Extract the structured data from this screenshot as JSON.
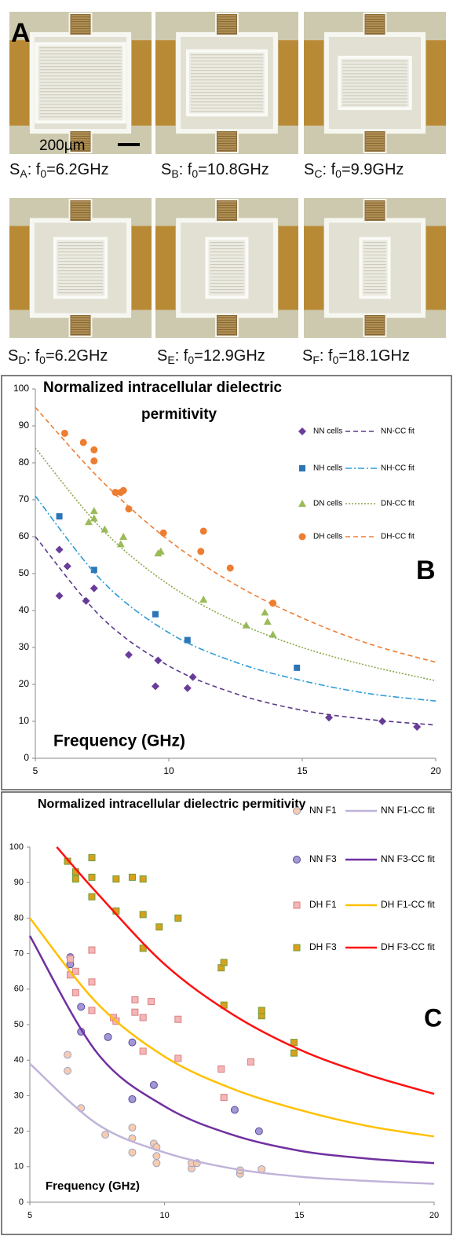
{
  "panel_a": {
    "label": "A",
    "scale_bar": "200µm",
    "captions": [
      {
        "name": "S",
        "name_sub": "A",
        "sep": ": f",
        "sep_sub": "0",
        "rest": "=6.2GHz"
      },
      {
        "name": "S",
        "name_sub": "B",
        "sep": ": f",
        "sep_sub": "0",
        "rest": "=10.8GHz"
      },
      {
        "name": "S",
        "name_sub": "C",
        "sep": ": f",
        "sep_sub": "0",
        "rest": "=9.9GHz"
      },
      {
        "name": "S",
        "name_sub": "D",
        "sep": ": f",
        "sep_sub": "0",
        "rest": "=6.2GHz"
      },
      {
        "name": "S",
        "name_sub": "E",
        "sep": ": f",
        "sep_sub": "0",
        "rest": "=12.9GHz"
      },
      {
        "name": "S",
        "name_sub": "F",
        "sep": ": f",
        "sep_sub": "0",
        "rest": "=18.1GHz"
      }
    ]
  },
  "chart_data": [
    {
      "type": "scatter",
      "panel_label": "B",
      "title": [
        "Normalized intracellular dielectric",
        "permitivity"
      ],
      "x_label": "Frequency (GHz)",
      "xlim": [
        5,
        20
      ],
      "xticks": [
        5,
        10,
        15,
        20
      ],
      "ylim": [
        0,
        100
      ],
      "yticks": [
        0,
        10,
        20,
        30,
        40,
        50,
        60,
        70,
        80,
        90,
        100
      ],
      "series": [
        {
          "name": "NN cells",
          "kind": "scatter",
          "marker": "diamond",
          "color": "#6a3d9a",
          "x": [
            5.9,
            5.9,
            6.2,
            6.9,
            7.2,
            8.5,
            9.5,
            9.6,
            10.7,
            10.9,
            16,
            18,
            19.3
          ],
          "values": [
            56.5,
            44,
            52,
            42.6,
            46,
            28,
            19.5,
            26.5,
            19,
            22,
            11,
            10,
            8.5
          ]
        },
        {
          "name": "NN-CC fit",
          "kind": "line",
          "dash": "dashed",
          "color": "#5b3a8a",
          "x": [
            5,
            7.5,
            10,
            12.5,
            15,
            17.5,
            20
          ],
          "values": [
            60,
            38,
            25,
            17.5,
            13,
            10.5,
            9
          ]
        },
        {
          "name": "NH cells",
          "kind": "scatter",
          "marker": "square",
          "color": "#2e75b6",
          "x": [
            5.9,
            7.2,
            9.5,
            10.7,
            14.8
          ],
          "values": [
            65.5,
            51,
            39,
            32,
            24.5
          ]
        },
        {
          "name": "NH-CC fit",
          "kind": "line",
          "dash": "dashdot",
          "color": "#2e9bd6",
          "x": [
            5,
            7.5,
            10,
            12.5,
            15,
            17.5,
            20
          ],
          "values": [
            71,
            48,
            34,
            26,
            21,
            17.5,
            15.5
          ]
        },
        {
          "name": "DN cells",
          "kind": "scatter",
          "marker": "triangle",
          "color": "#9bbb59",
          "x": [
            7.0,
            7.2,
            7.2,
            7.6,
            8.2,
            8.3,
            9.6,
            9.7,
            11.3,
            12.9,
            13.6,
            13.7,
            13.9
          ],
          "values": [
            64,
            67,
            65,
            62,
            58,
            60,
            55.5,
            56,
            43,
            36,
            39.5,
            37,
            33.5
          ]
        },
        {
          "name": "DN-CC fit",
          "kind": "line",
          "dash": "dotted",
          "color": "#8aa84a",
          "x": [
            5,
            7.5,
            10,
            12.5,
            15,
            17.5,
            20
          ],
          "values": [
            84,
            62,
            47,
            37,
            30,
            25,
            21
          ]
        },
        {
          "name": "DH cells",
          "kind": "scatter",
          "marker": "circle",
          "color": "#ed7d31",
          "x": [
            6.1,
            6.8,
            7.2,
            7.2,
            8.0,
            8.2,
            8.3,
            8.5,
            9.8,
            11.2,
            11.3,
            12.3,
            13.9
          ],
          "values": [
            88,
            85.5,
            83.5,
            80.5,
            72,
            72,
            72.5,
            67.5,
            61,
            56,
            61.5,
            51.5,
            42
          ]
        },
        {
          "name": "DH-CC fit",
          "kind": "line",
          "dash": "dashed",
          "color": "#ed7d31",
          "x": [
            5,
            7.5,
            10,
            12.5,
            15,
            17.5,
            20
          ],
          "values": [
            95,
            75,
            59,
            47,
            38,
            31,
            26
          ]
        }
      ]
    },
    {
      "type": "scatter",
      "panel_label": "C",
      "title": [
        "Normalized intracellular dielectric permitivity"
      ],
      "x_label": "Frequency (GHz)",
      "xlim": [
        5,
        20
      ],
      "xticks": [
        5,
        10,
        15,
        20
      ],
      "ylim": [
        0,
        100
      ],
      "yticks": [
        0,
        10,
        20,
        30,
        40,
        50,
        60,
        70,
        80,
        90,
        100
      ],
      "series": [
        {
          "name": "NN F1",
          "kind": "scatter",
          "marker": "circle",
          "color": "#f8cbad",
          "edge_color": "#9aa3c7",
          "x": [
            6.4,
            6.4,
            6.9,
            7.8,
            8.8,
            8.8,
            8.8,
            9.6,
            9.7,
            9.7,
            9.7,
            11.0,
            11.0,
            11.2,
            12.8,
            12.8,
            13.6
          ],
          "values": [
            41.5,
            37,
            26.5,
            19,
            21,
            14,
            18,
            16.5,
            15.5,
            13,
            11,
            9.5,
            11,
            11,
            8,
            9,
            9.3
          ]
        },
        {
          "name": "NN F1-CC fit",
          "kind": "line",
          "dash": "solid",
          "color": "#c0b3d9",
          "x": [
            5,
            7.5,
            10,
            12.5,
            15,
            17.5,
            20
          ],
          "values": [
            39,
            22,
            14,
            9.5,
            7.2,
            6,
            5.2
          ]
        },
        {
          "name": "NN F3",
          "kind": "scatter",
          "marker": "circle",
          "color": "#a397d6",
          "edge_color": "#5b4a9a",
          "x": [
            6.5,
            6.5,
            6.9,
            6.9,
            7.9,
            8.8,
            8.8,
            9.6,
            12.6,
            13.5
          ],
          "values": [
            69,
            67,
            55,
            48,
            46.5,
            45,
            29,
            33,
            26,
            20
          ]
        },
        {
          "name": "NN F3-CC fit",
          "kind": "line",
          "dash": "solid",
          "color": "#7030a0",
          "x": [
            5,
            7.5,
            10,
            12.5,
            15,
            17.5,
            20
          ],
          "values": [
            75,
            42,
            27,
            19,
            14.5,
            12.3,
            11
          ]
        },
        {
          "name": "DH F1",
          "kind": "scatter",
          "marker": "square",
          "color": "#f4b6b6",
          "edge_color": "#d98080",
          "x": [
            6.5,
            6.5,
            6.7,
            6.7,
            7.3,
            7.3,
            7.3,
            8.1,
            8.2,
            8.2,
            8.9,
            8.9,
            9.2,
            9.2,
            9.5,
            10.5,
            10.5,
            12.1,
            12.2,
            13.2
          ],
          "values": [
            68.5,
            64,
            65,
            59,
            71,
            62,
            54,
            52,
            51,
            51,
            57,
            53.5,
            52,
            42.5,
            56.5,
            51.5,
            40.5,
            37.5,
            29.5,
            39.5
          ]
        },
        {
          "name": "DH F1-CC fit",
          "kind": "line",
          "dash": "solid",
          "color": "#ffc000",
          "x": [
            5,
            7.5,
            10,
            12.5,
            15,
            17.5,
            20
          ],
          "values": [
            80,
            56,
            41,
            32,
            26,
            21.5,
            18.5
          ]
        },
        {
          "name": "DH F3",
          "kind": "scatter",
          "marker": "square",
          "color": "#d8a01e",
          "edge_color": "#6f9e3a",
          "x": [
            6.4,
            6.7,
            6.7,
            7.3,
            7.3,
            7.3,
            8.2,
            8.2,
            8.8,
            9.2,
            9.2,
            9.2,
            9.8,
            10.5,
            12.1,
            12.2,
            12.2,
            13.6,
            13.6,
            14.8,
            14.8
          ],
          "values": [
            96,
            93,
            91,
            91.5,
            86,
            97,
            91,
            82,
            91.5,
            91,
            81,
            71.5,
            77.5,
            80,
            66,
            67.5,
            55.5,
            52.5,
            54,
            45,
            42
          ]
        },
        {
          "name": "DH F3-CC fit",
          "kind": "line",
          "dash": "solid",
          "color": "#ff1010",
          "x": [
            6,
            7.5,
            10,
            12.5,
            15,
            17.5,
            20
          ],
          "values": [
            100,
            87,
            67,
            53,
            43,
            36,
            30.5
          ]
        }
      ]
    }
  ]
}
